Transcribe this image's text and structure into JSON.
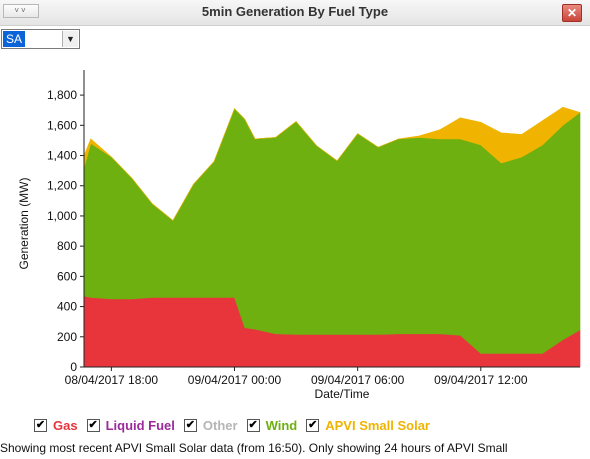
{
  "window": {
    "title": "5min Generation By Fuel Type",
    "collapse_glyph": "˅˅",
    "close_glyph": "✕"
  },
  "region": {
    "selected": "SA",
    "arrow_glyph": "▼"
  },
  "legend": {
    "check_glyph": "✔",
    "items": [
      {
        "label": "Gas",
        "color": "#e8353b",
        "checked": true
      },
      {
        "label": "Liquid Fuel",
        "color": "#9b2a9b",
        "checked": true
      },
      {
        "label": "Other",
        "color": "#b5b5b5",
        "checked": true
      },
      {
        "label": "Wind",
        "color": "#6db010",
        "checked": true
      },
      {
        "label": "APVI Small Solar",
        "color": "#f0b400",
        "checked": true
      }
    ]
  },
  "footer": {
    "text": "Showing most recent APVI Small Solar data (from 16:50). Only showing 24 hours of APVI Small"
  },
  "chart_data": {
    "type": "area",
    "stacked": true,
    "title": "",
    "xlabel": "Date/Time",
    "ylabel": "Generation (MW)",
    "ylim": [
      0,
      1900
    ],
    "yticks": [
      0,
      200,
      400,
      600,
      800,
      1000,
      1200,
      1400,
      1600,
      1800
    ],
    "xlim": [
      "08/04/2017 16:40",
      "09/04/2017 16:50"
    ],
    "xticks": [
      "08/04/2017 18:00",
      "09/04/2017 00:00",
      "09/04/2017 06:00",
      "09/04/2017 12:00"
    ],
    "x": [
      "08/04/2017 16:40",
      "08/04/2017 17:00",
      "08/04/2017 18:00",
      "08/04/2017 19:00",
      "08/04/2017 20:00",
      "08/04/2017 21:00",
      "08/04/2017 22:00",
      "08/04/2017 23:00",
      "09/04/2017 00:00",
      "09/04/2017 00:30",
      "09/04/2017 01:00",
      "09/04/2017 02:00",
      "09/04/2017 03:00",
      "09/04/2017 04:00",
      "09/04/2017 05:00",
      "09/04/2017 06:00",
      "09/04/2017 07:00",
      "09/04/2017 08:00",
      "09/04/2017 09:00",
      "09/04/2017 10:00",
      "09/04/2017 11:00",
      "09/04/2017 12:00",
      "09/04/2017 13:00",
      "09/04/2017 14:00",
      "09/04/2017 15:00",
      "09/04/2017 16:00",
      "09/04/2017 16:50"
    ],
    "series": [
      {
        "name": "Gas",
        "color": "#e8353b",
        "values": [
          470,
          460,
          450,
          450,
          460,
          460,
          460,
          460,
          460,
          260,
          250,
          220,
          215,
          215,
          215,
          215,
          215,
          220,
          220,
          220,
          210,
          90,
          90,
          90,
          90,
          180,
          245
        ]
      },
      {
        "name": "Liquid Fuel",
        "color": "#9b2a9b",
        "values": [
          0,
          0,
          0,
          0,
          0,
          0,
          0,
          0,
          0,
          0,
          0,
          0,
          0,
          0,
          0,
          0,
          0,
          0,
          0,
          0,
          0,
          0,
          0,
          0,
          0,
          0,
          0
        ]
      },
      {
        "name": "Other",
        "color": "#b5b5b5",
        "values": [
          0,
          0,
          0,
          0,
          0,
          0,
          0,
          0,
          0,
          0,
          0,
          0,
          0,
          0,
          0,
          0,
          0,
          0,
          0,
          0,
          0,
          0,
          0,
          0,
          0,
          0,
          0
        ]
      },
      {
        "name": "Wind",
        "color": "#6db010",
        "values": [
          850,
          1020,
          940,
          800,
          620,
          510,
          750,
          900,
          1250,
          1380,
          1260,
          1300,
          1410,
          1250,
          1150,
          1330,
          1240,
          1290,
          1300,
          1290,
          1300,
          1380,
          1260,
          1300,
          1380,
          1420,
          1440
        ]
      },
      {
        "name": "APVI Small Solar",
        "color": "#f0b400",
        "values": [
          80,
          30,
          0,
          0,
          0,
          0,
          0,
          0,
          0,
          0,
          0,
          0,
          0,
          0,
          0,
          0,
          0,
          0,
          10,
          60,
          140,
          150,
          200,
          150,
          160,
          120,
          0
        ]
      }
    ]
  }
}
